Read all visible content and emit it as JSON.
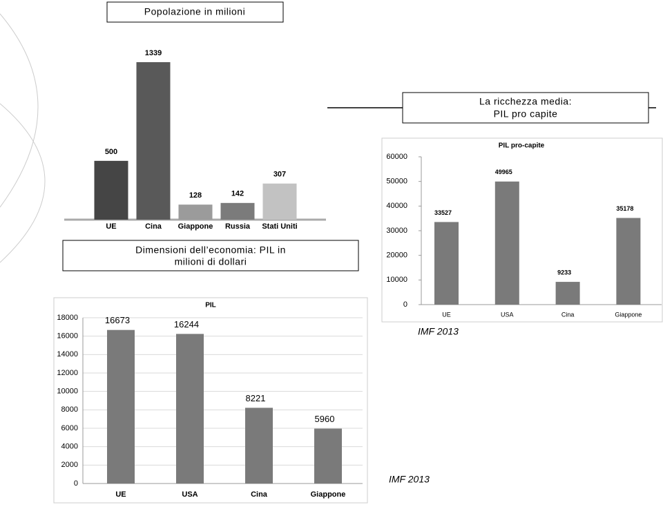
{
  "chart_data": [
    {
      "type": "bar",
      "title": "Popolazione in milioni",
      "categories": [
        "UE",
        "Cina",
        "Giappone",
        "Russia",
        "Stati Uniti"
      ],
      "values": [
        500,
        1339,
        128,
        142,
        307
      ],
      "colors": [
        "#454545",
        "#595959",
        "#9b9b9b",
        "#7b7b7b",
        "#c2c2c2"
      ]
    },
    {
      "type": "bar",
      "heading": [
        "La ricchezza media:",
        "PIL  pro capite"
      ],
      "title": "PIL pro-capite",
      "source": "IMF 2013",
      "categories": [
        "UE",
        "USA",
        "Cina",
        "Giappone"
      ],
      "values": [
        33527,
        49965,
        9233,
        35178
      ],
      "color": "#7a7a7a",
      "ylim": [
        0,
        60000
      ],
      "yticks": [
        0,
        10000,
        20000,
        30000,
        40000,
        50000,
        60000
      ],
      "grid": false
    },
    {
      "type": "bar",
      "heading": [
        "Dimensioni dell’economia: PIL in",
        "milioni di dollari"
      ],
      "title": "PIL",
      "source": "IMF 2013",
      "categories": [
        "UE",
        "USA",
        "Cina",
        "Giappone"
      ],
      "values": [
        16673,
        16244,
        8221,
        5960
      ],
      "color": "#7a7a7a",
      "ylim": [
        0,
        18000
      ],
      "yticks": [
        0,
        2000,
        4000,
        6000,
        8000,
        10000,
        12000,
        14000,
        16000,
        18000
      ],
      "grid": true
    }
  ]
}
